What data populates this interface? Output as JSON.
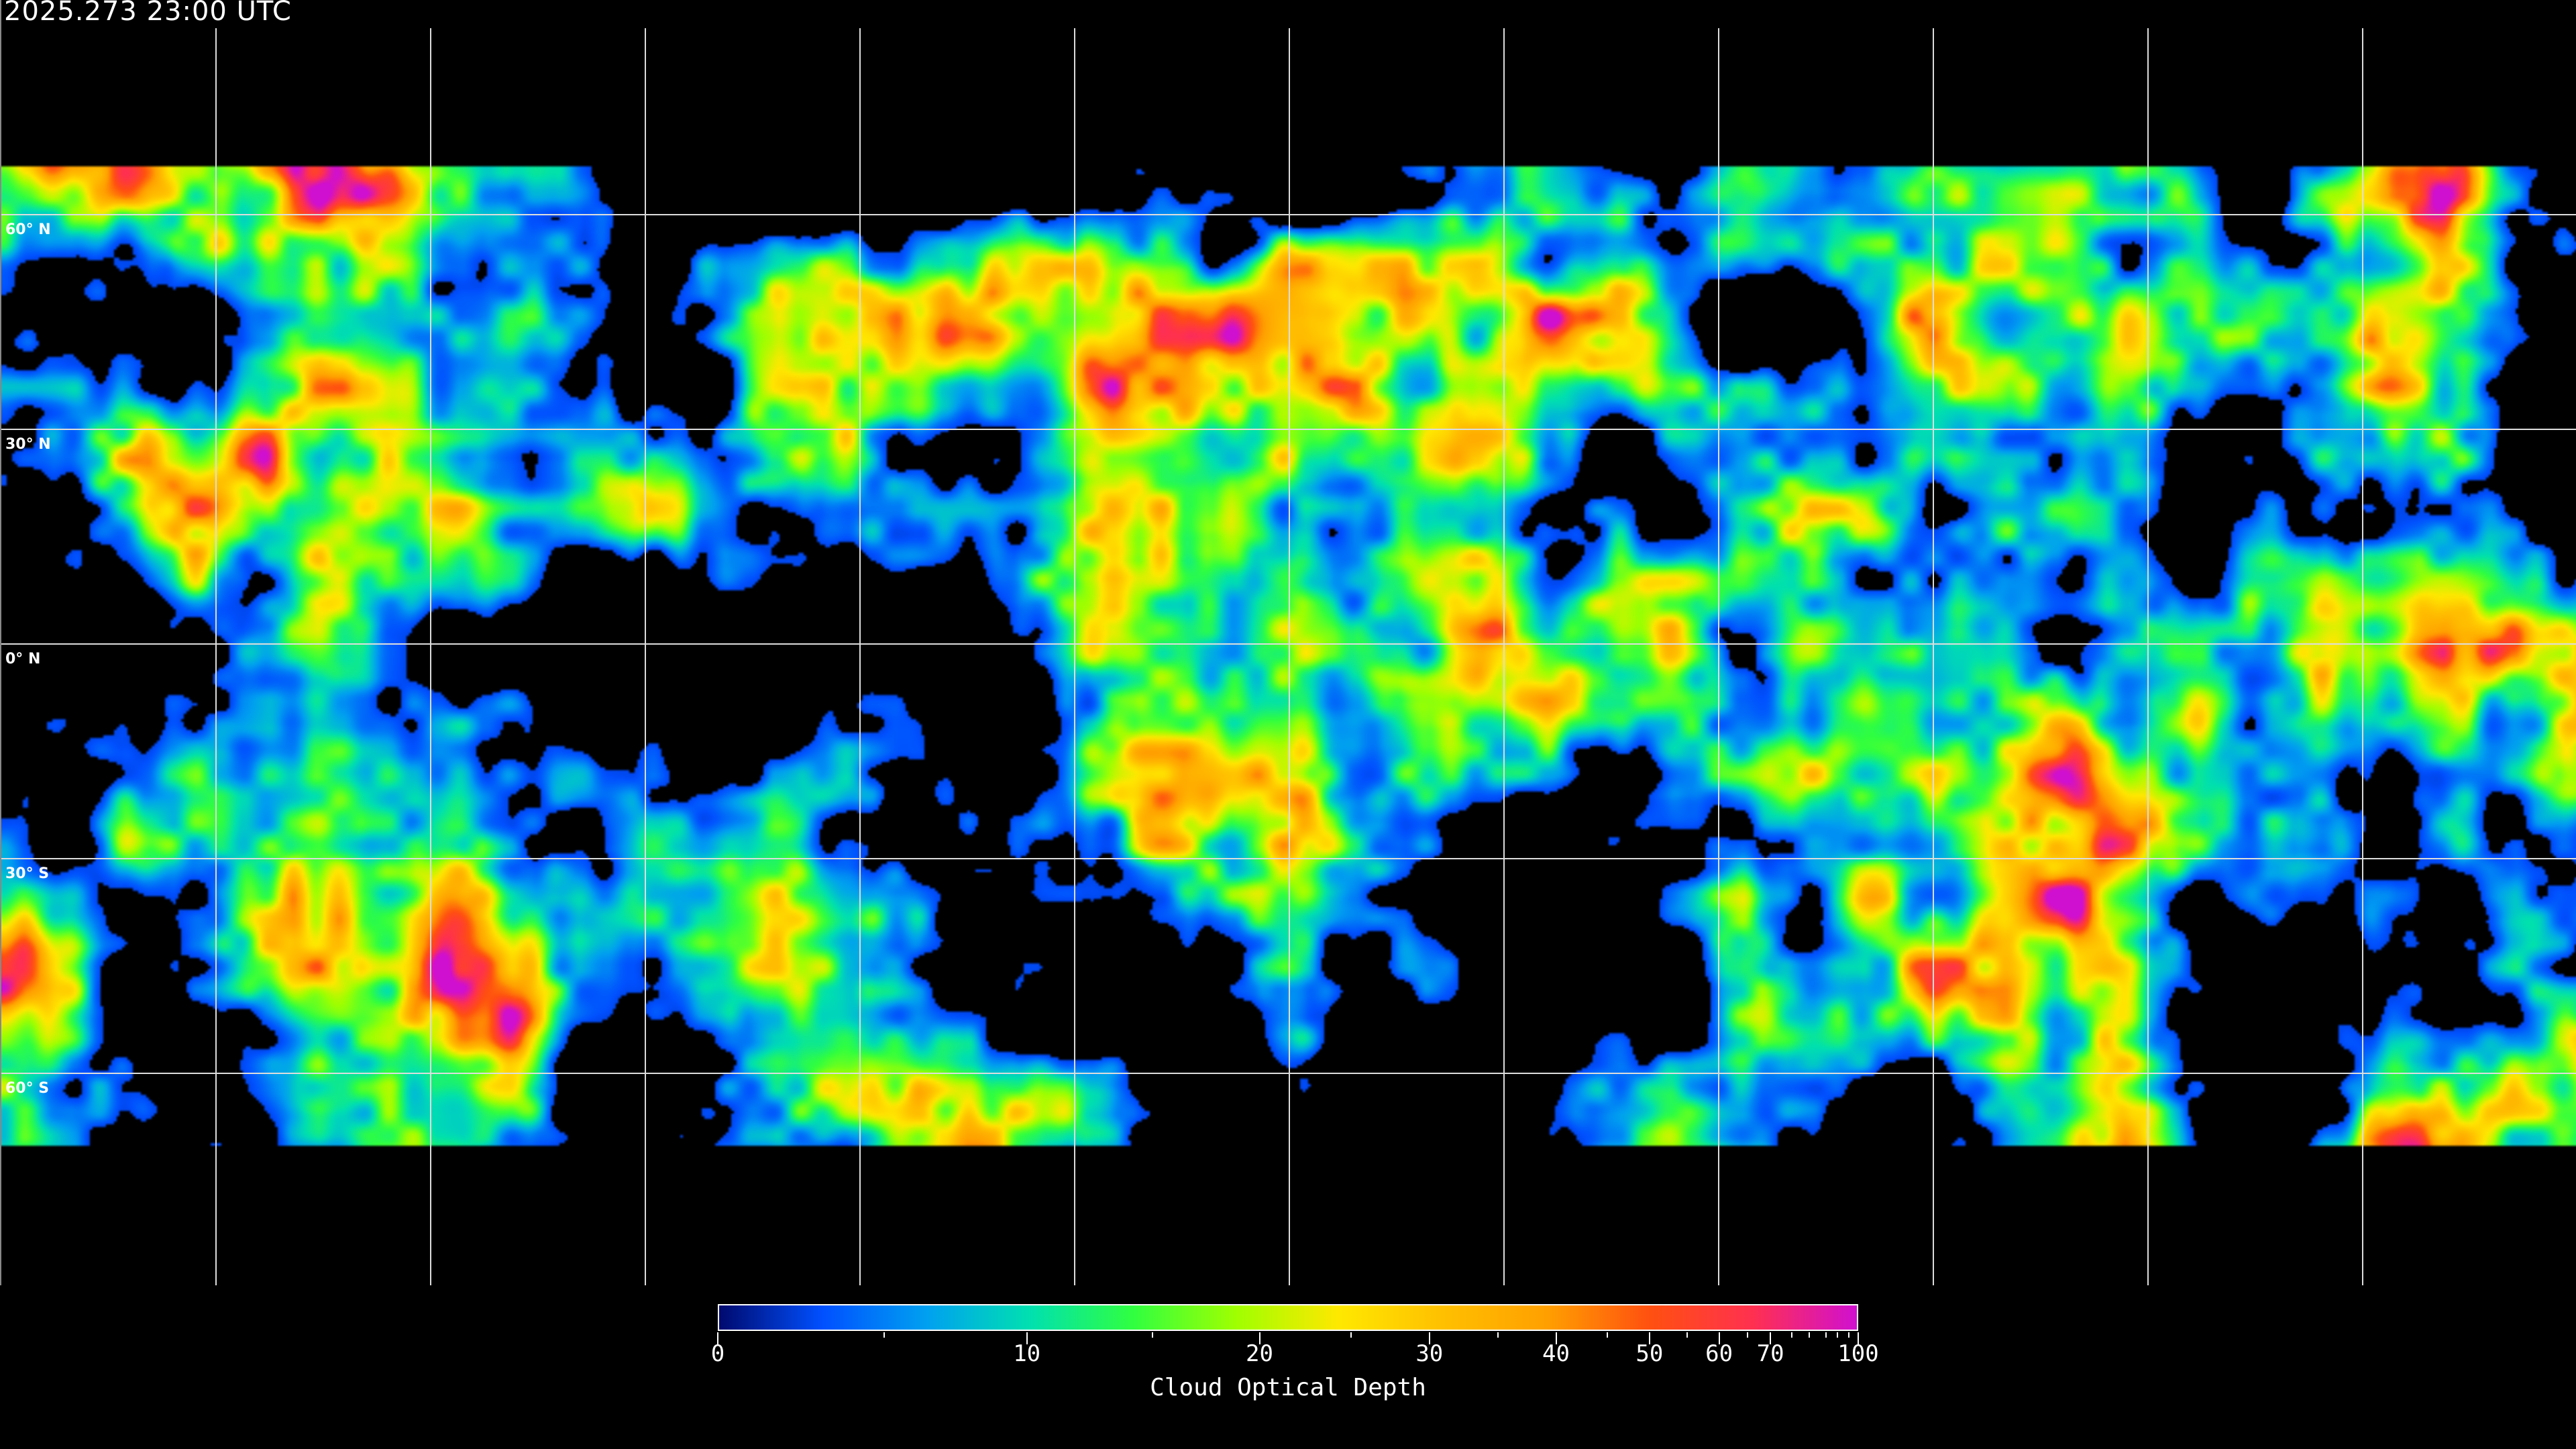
{
  "title": "2025.273 23:00 UTC",
  "map": {
    "projection": "equirectangular",
    "grid_spacing_deg": 30,
    "gridline_color": "#ffffff",
    "coastline_color": "#ffffff",
    "latitude_labels": [
      "60° N",
      "30° N",
      "0° N",
      "30° S",
      "60° S"
    ]
  },
  "colorbar": {
    "title": "Cloud Optical Depth",
    "range": [
      0,
      100
    ],
    "tick_labels": [
      "0",
      "10",
      "20",
      "30",
      "40",
      "50",
      "60",
      "70",
      "100"
    ],
    "colors": [
      "#000a6e",
      "#0050ff",
      "#00a0f0",
      "#00e0b0",
      "#30ff40",
      "#a0ff00",
      "#ffe800",
      "#ffc000",
      "#ffa000",
      "#ff5010",
      "#ff3050",
      "#d010d0"
    ]
  }
}
